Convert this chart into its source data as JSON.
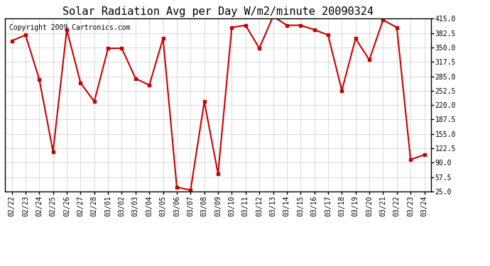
{
  "title": "Solar Radiation Avg per Day W/m2/minute 20090324",
  "copyright": "Copyright 2009 Cartronics.com",
  "dates": [
    "02/22",
    "02/23",
    "02/24",
    "02/25",
    "02/26",
    "02/27",
    "02/28",
    "03/01",
    "03/02",
    "03/03",
    "03/04",
    "03/05",
    "03/06",
    "03/07",
    "03/08",
    "03/09",
    "03/10",
    "03/11",
    "03/12",
    "03/13",
    "03/14",
    "03/15",
    "03/16",
    "03/17",
    "03/18",
    "03/19",
    "03/20",
    "03/21",
    "03/22",
    "03/23",
    "03/24"
  ],
  "values": [
    365,
    378,
    278,
    115,
    390,
    270,
    228,
    348,
    348,
    280,
    265,
    370,
    35,
    28,
    228,
    65,
    395,
    400,
    348,
    420,
    400,
    400,
    390,
    378,
    253,
    370,
    322,
    412,
    395,
    97,
    108
  ],
  "line_color": "#cc0000",
  "marker": "s",
  "marker_size": 3,
  "ylim": [
    25.0,
    415.0
  ],
  "yticks": [
    25.0,
    57.5,
    90.0,
    122.5,
    155.0,
    187.5,
    220.0,
    252.5,
    285.0,
    317.5,
    350.0,
    382.5,
    415.0
  ],
  "background_color": "#ffffff",
  "grid_color": "#cccccc",
  "title_fontsize": 11,
  "copyright_fontsize": 7,
  "tick_fontsize": 7
}
